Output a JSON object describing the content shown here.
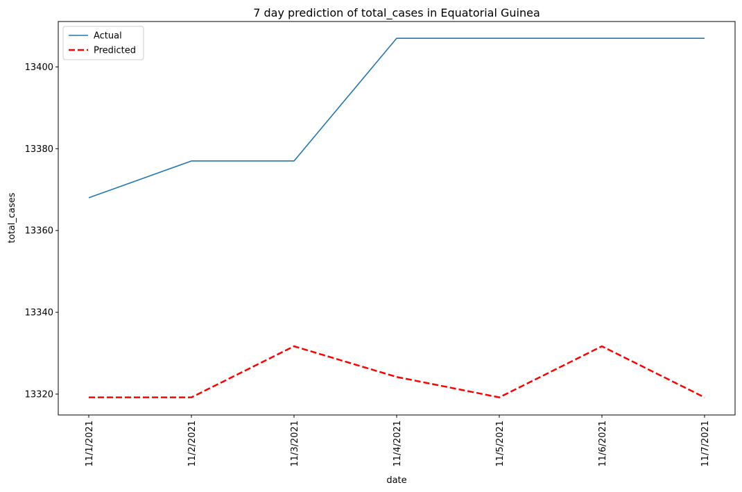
{
  "chart_data": {
    "type": "line",
    "title": "7 day prediction of total_cases in Equatorial Guinea",
    "xlabel": "date",
    "ylabel": "total_cases",
    "categories": [
      "11/1/2021",
      "11/2/2021",
      "11/3/2021",
      "11/4/2021",
      "11/5/2021",
      "11/6/2021",
      "11/7/2021"
    ],
    "yticks": [
      13320,
      13340,
      13360,
      13380,
      13400
    ],
    "ylim": [
      13314.9,
      13411.1
    ],
    "grid": false,
    "legend_position": "top-left",
    "series": [
      {
        "name": "Actual",
        "values": [
          13368,
          13377,
          13377,
          13407,
          13407,
          13407,
          13407
        ],
        "color": "#1f77b4",
        "style": "solid"
      },
      {
        "name": "Predicted",
        "values": [
          13319.2,
          13319.2,
          13331.7,
          13324.2,
          13319.2,
          13331.7,
          13319.2
        ],
        "color": "#ff0000",
        "style": "dashed"
      }
    ]
  }
}
